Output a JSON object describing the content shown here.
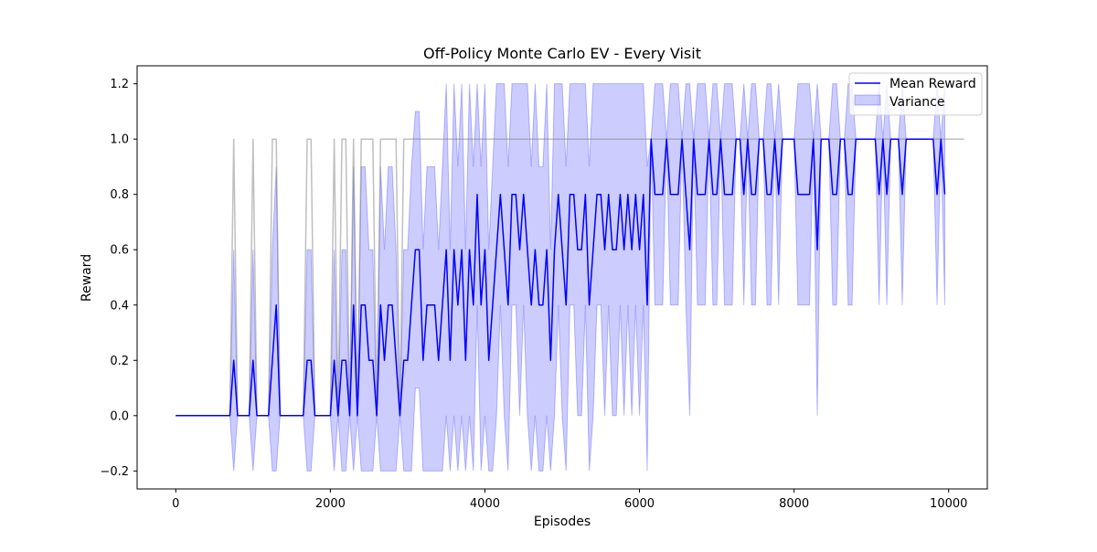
{
  "chart_data": {
    "type": "line",
    "title": "Off-Policy Monte Carlo EV - Every Visit",
    "xlabel": "Episodes",
    "ylabel": "Reward",
    "xlim": [
      -500,
      10500
    ],
    "ylim": [
      -0.265,
      1.265
    ],
    "xticks": [
      0,
      2000,
      4000,
      6000,
      8000,
      10000
    ],
    "xtick_labels": [
      "0",
      "2000",
      "4000",
      "6000",
      "8000",
      "10000"
    ],
    "yticks": [
      -0.2,
      0.0,
      0.2,
      0.4,
      0.6,
      0.8,
      1.0,
      1.2
    ],
    "ytick_labels": [
      "−0.2",
      "0.0",
      "0.2",
      "0.4",
      "0.6",
      "0.8",
      "1.0",
      "1.2"
    ],
    "grid": false,
    "legend_position": "top-right",
    "x_step": 50,
    "series": [
      {
        "name": "Mean Reward",
        "role": "mean",
        "color": "#0000ff",
        "values": [
          0,
          0,
          0,
          0,
          0,
          0,
          0,
          0,
          0,
          0,
          0,
          0,
          0,
          0,
          0,
          0.2,
          0,
          0,
          0,
          0,
          0.2,
          0,
          0,
          0,
          0,
          0.2,
          0.4,
          0,
          0,
          0,
          0,
          0,
          0,
          0,
          0.2,
          0.2,
          0,
          0,
          0,
          0,
          0,
          0.2,
          0,
          0.2,
          0.2,
          0,
          0.4,
          0,
          0.4,
          0.4,
          0.2,
          0.2,
          0,
          0.4,
          0.2,
          0.4,
          0.4,
          0.2,
          0,
          0.2,
          0.2,
          0.4,
          0.6,
          0.6,
          0.2,
          0.4,
          0.4,
          0.4,
          0.2,
          0.4,
          0.6,
          0.2,
          0.6,
          0.4,
          0.6,
          0.2,
          0.6,
          0.4,
          0.8,
          0.4,
          0.6,
          0.2,
          0.4,
          0.6,
          0.8,
          0.6,
          0.4,
          0.8,
          0.8,
          0.6,
          0.8,
          0.6,
          0.4,
          0.6,
          0.4,
          0.4,
          0.6,
          0.2,
          0.6,
          0.8,
          0.6,
          0.4,
          0.8,
          0.8,
          0.6,
          0.6,
          0.8,
          0.4,
          0.6,
          0.8,
          0.8,
          0.6,
          0.8,
          0.6,
          0.6,
          0.8,
          0.6,
          0.8,
          0.6,
          0.8,
          0.6,
          0.8,
          0.4,
          1,
          0.8,
          0.8,
          0.8,
          1,
          0.8,
          0.8,
          0.8,
          1,
          0.8,
          0.6,
          1,
          0.8,
          0.8,
          0.8,
          1,
          0.8,
          0.8,
          1,
          0.8,
          0.8,
          0.8,
          1,
          1,
          0.8,
          1,
          0.8,
          0.8,
          1,
          1,
          0.8,
          0.8,
          1,
          0.8,
          1,
          1,
          1,
          1,
          0.8,
          0.8,
          0.8,
          0.8,
          1,
          0.6,
          1,
          1,
          1,
          0.8,
          0.8,
          1,
          1,
          0.8,
          0.8,
          1,
          1,
          1,
          1,
          1,
          1,
          0.8,
          1,
          0.8,
          1,
          1,
          1,
          0.8,
          1,
          1,
          1,
          1,
          1,
          1,
          1,
          1,
          0.8,
          1,
          0.8
        ],
        "variance_band": {
          "name": "Variance",
          "color": "#0000ff",
          "opacity": 0.2,
          "lower": [
            0,
            0,
            0,
            0,
            0,
            0,
            0,
            0,
            0,
            0,
            0,
            0,
            0,
            0,
            0,
            -0.2,
            0,
            0,
            0,
            0,
            -0.2,
            0,
            0,
            0,
            0,
            -0.2,
            -0.2,
            0,
            0,
            0,
            0,
            0,
            0,
            0,
            -0.2,
            -0.2,
            0,
            0,
            0,
            0,
            0,
            -0.2,
            0,
            -0.2,
            -0.2,
            0,
            -0.2,
            0,
            -0.2,
            -0.2,
            -0.2,
            -0.2,
            0,
            -0.2,
            -0.2,
            -0.2,
            -0.2,
            -0.2,
            0,
            -0.2,
            -0.2,
            -0.2,
            0.1,
            0.1,
            -0.2,
            -0.2,
            -0.2,
            -0.2,
            -0.2,
            -0.2,
            0,
            -0.2,
            0,
            -0.2,
            0,
            -0.2,
            0,
            -0.2,
            0.4,
            -0.2,
            0,
            -0.2,
            -0.2,
            0,
            0.4,
            0,
            -0.2,
            0.4,
            0.4,
            0,
            0.4,
            0,
            -0.2,
            0,
            -0.2,
            -0.2,
            0,
            -0.2,
            0,
            0.4,
            0,
            -0.2,
            0.4,
            0.4,
            0,
            0,
            0.4,
            -0.2,
            0,
            0.4,
            0.4,
            0,
            0.4,
            0,
            0,
            0.4,
            0,
            0.4,
            0,
            0.4,
            0,
            0.4,
            -0.2,
            1,
            0.4,
            0.4,
            0.4,
            1,
            0.4,
            0.4,
            0.4,
            1,
            0.4,
            0,
            1,
            0.4,
            0.4,
            0.4,
            1,
            0.4,
            0.4,
            1,
            0.4,
            0.4,
            0.4,
            1,
            1,
            0.4,
            1,
            0.4,
            0.4,
            1,
            1,
            0.4,
            0.4,
            1,
            0.4,
            1,
            1,
            1,
            1,
            0.4,
            0.4,
            0.4,
            0.4,
            1,
            0,
            1,
            1,
            1,
            0.4,
            0.4,
            1,
            1,
            0.4,
            0.4,
            1,
            1,
            1,
            1,
            1,
            1,
            0.4,
            1,
            0.4,
            1,
            1,
            1,
            0.4,
            1,
            1,
            1,
            1,
            1,
            1,
            1,
            1,
            0.4,
            1,
            0.4
          ],
          "upper": [
            0,
            0,
            0,
            0,
            0,
            0,
            0,
            0,
            0,
            0,
            0,
            0,
            0,
            0,
            0,
            0.6,
            0,
            0,
            0,
            0,
            0.6,
            0,
            0,
            0,
            0,
            0.6,
            0.9,
            0,
            0,
            0,
            0,
            0,
            0,
            0,
            0.6,
            0.6,
            0,
            0,
            0,
            0,
            0,
            0.6,
            0,
            0.6,
            0.6,
            0,
            0.9,
            0,
            0.9,
            0.9,
            0.6,
            0.6,
            0,
            0.9,
            0.6,
            0.9,
            0.9,
            0.6,
            0,
            0.6,
            0.6,
            0.9,
            1.1,
            1.1,
            0.6,
            0.9,
            0.9,
            0.9,
            0.6,
            0.9,
            1.2,
            0.6,
            1.2,
            0.9,
            1.2,
            0.6,
            1.2,
            0.9,
            1.2,
            0.9,
            1.2,
            0.6,
            0.9,
            1.2,
            1.2,
            1.2,
            0.9,
            1.2,
            1.2,
            1.2,
            1.2,
            1.2,
            0.9,
            1.2,
            0.9,
            0.9,
            1.2,
            0.6,
            1.2,
            1.2,
            1.2,
            0.9,
            1.2,
            1.2,
            1.2,
            1.2,
            1.2,
            0.9,
            1.2,
            1.2,
            1.2,
            1.2,
            1.2,
            1.2,
            1.2,
            1.2,
            1.2,
            1.2,
            1.2,
            1.2,
            1.2,
            1.2,
            0.9,
            1,
            1.2,
            1.2,
            1.2,
            1,
            1.2,
            1.2,
            1.2,
            1,
            1.2,
            1.2,
            1,
            1.2,
            1.2,
            1.2,
            1,
            1.2,
            1.2,
            1,
            1.2,
            1.2,
            1.2,
            1,
            1,
            1.2,
            1,
            1.2,
            1.2,
            1,
            1,
            1.2,
            1.2,
            1,
            1.2,
            1,
            1,
            1,
            1,
            1.2,
            1.2,
            1.2,
            1.2,
            1,
            1.2,
            1,
            1,
            1,
            1.2,
            1.2,
            1,
            1,
            1.2,
            1.2,
            1,
            1,
            1,
            1,
            1,
            1,
            1.2,
            1,
            1.2,
            1,
            1,
            1,
            1.2,
            1,
            1,
            1,
            1,
            1,
            1,
            1,
            1,
            1.2,
            1,
            1.2
          ]
        }
      },
      {
        "role": "individual-runs",
        "color": "#808080",
        "opacity": 0.5,
        "values": [
          0,
          0,
          0,
          0,
          0,
          0,
          0,
          0,
          0,
          0,
          0,
          0,
          0,
          0,
          0,
          1,
          0,
          0,
          0,
          0,
          1,
          0,
          0,
          0,
          0,
          1,
          1,
          0,
          0,
          0,
          0,
          0,
          0,
          0,
          1,
          1,
          0,
          0,
          0,
          0,
          0,
          1,
          0,
          1,
          1,
          0,
          1,
          0,
          1,
          1,
          1,
          1,
          0,
          1,
          1,
          1,
          1,
          1,
          0,
          1,
          1,
          1,
          1,
          1,
          1,
          1,
          1,
          1,
          1,
          1,
          1,
          1,
          1,
          1,
          1,
          1,
          1,
          1,
          1,
          1,
          1,
          1,
          1,
          1,
          1,
          1,
          1,
          1,
          1,
          1,
          1,
          1,
          1,
          1,
          1,
          1,
          1,
          1,
          1,
          1,
          1,
          1,
          1,
          1,
          1,
          1,
          1,
          1,
          1,
          1,
          1,
          1,
          1,
          1,
          1,
          1,
          1,
          1,
          1,
          1,
          1,
          1,
          1,
          1,
          1,
          1,
          1,
          1,
          1,
          1,
          1,
          1,
          1,
          1,
          1,
          1,
          1,
          1,
          1,
          1,
          1,
          1,
          1,
          1,
          1,
          1,
          1,
          1,
          1,
          1,
          1,
          1,
          1,
          1,
          1,
          1,
          1,
          1,
          1,
          1,
          1,
          1,
          1,
          1,
          1,
          1,
          1,
          1,
          1,
          1,
          1,
          1,
          1,
          1,
          1,
          1,
          1,
          1,
          1,
          1,
          1,
          1,
          1,
          1,
          1,
          1,
          1,
          1,
          1,
          1,
          1,
          1,
          1,
          1,
          1,
          1,
          1,
          1,
          1,
          1,
          1,
          1,
          1,
          1,
          1
        ]
      }
    ]
  }
}
